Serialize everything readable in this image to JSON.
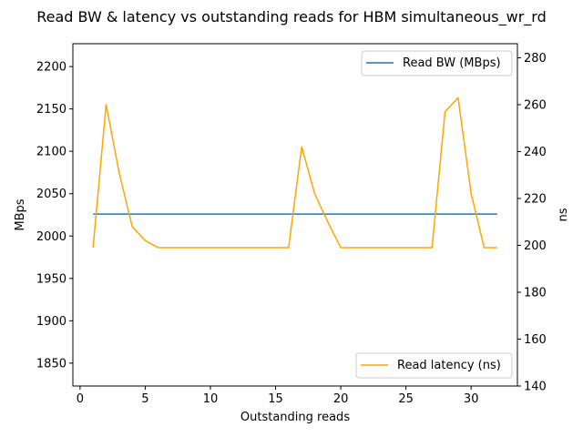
{
  "chart_data": {
    "type": "line",
    "title": "Read BW & latency vs outstanding reads for HBM simultaneous_wr_rd",
    "xlabel": "Outstanding reads",
    "ylabel_left": "MBps",
    "ylabel_right": "ns",
    "xlim": [
      -0.55,
      33.55
    ],
    "ylim_left": [
      1823,
      2227
    ],
    "ylim_right": [
      140,
      286
    ],
    "x_ticks": [
      0,
      5,
      10,
      15,
      20,
      25,
      30
    ],
    "y_ticks_left": [
      1850,
      1900,
      1950,
      2000,
      2050,
      2100,
      2150,
      2200
    ],
    "y_ticks_right": [
      140,
      160,
      180,
      200,
      220,
      240,
      260,
      280
    ],
    "grid": false,
    "series": [
      {
        "name": "Read BW (MBps)",
        "axis": "left",
        "color": "#1f77b4",
        "x": [
          1,
          2,
          3,
          4,
          5,
          6,
          7,
          8,
          9,
          10,
          11,
          12,
          13,
          14,
          15,
          16,
          17,
          18,
          19,
          20,
          21,
          22,
          23,
          24,
          25,
          26,
          27,
          28,
          29,
          30,
          31,
          32
        ],
        "values": [
          2026,
          2026,
          2026,
          2026,
          2026,
          2026,
          2026,
          2026,
          2026,
          2026,
          2026,
          2026,
          2026,
          2026,
          2026,
          2026,
          2026,
          2026,
          2026,
          2026,
          2026,
          2026,
          2026,
          2026,
          2026,
          2026,
          2026,
          2026,
          2026,
          2026,
          2026,
          2026
        ],
        "legend_position": "upper right"
      },
      {
        "name": "Read latency (ns)",
        "axis": "right",
        "color": "#ffa500",
        "x": [
          1,
          2,
          3,
          4,
          5,
          6,
          7,
          8,
          9,
          10,
          11,
          12,
          13,
          14,
          15,
          16,
          17,
          18,
          19,
          20,
          21,
          22,
          23,
          24,
          25,
          26,
          27,
          28,
          29,
          30,
          31,
          32
        ],
        "values": [
          199,
          260,
          231,
          208,
          202,
          199,
          199,
          199,
          199,
          199,
          199,
          199,
          199,
          199,
          199,
          199,
          242,
          222,
          210,
          199,
          199,
          199,
          199,
          199,
          199,
          199,
          199,
          257,
          263,
          222,
          199,
          199
        ],
        "legend_position": "lower right"
      }
    ]
  }
}
